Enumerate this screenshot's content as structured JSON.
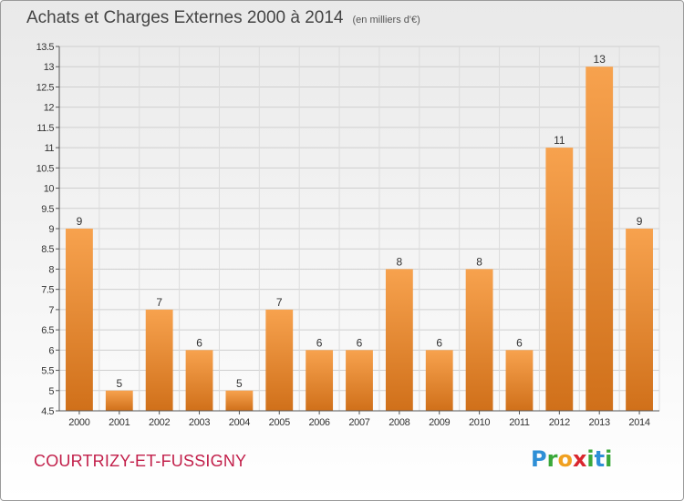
{
  "header": {
    "title": "Achats et Charges Externes 2000 à 2014",
    "unit": "(en milliers d'€)"
  },
  "footer": {
    "commune": "COURTRIZY-ET-FUSSIGNY",
    "logo": {
      "p": "P",
      "r": "r",
      "o": "o",
      "x": "x",
      "i": "i",
      "t": "t",
      "i2": "i"
    }
  },
  "colors": {
    "bar_top": "#f7a24e",
    "bar_bottom": "#d0701a",
    "commune": "#c21f4a",
    "axis": "#555555"
  },
  "chart_data": {
    "type": "bar",
    "title": "Achats et Charges Externes 2000 à 2014",
    "subtitle": "(en milliers d'€)",
    "categories": [
      "2000",
      "2001",
      "2002",
      "2003",
      "2004",
      "2005",
      "2006",
      "2007",
      "2008",
      "2009",
      "2010",
      "2011",
      "2012",
      "2013",
      "2014"
    ],
    "values": [
      9,
      5,
      7,
      6,
      5,
      7,
      6,
      6,
      8,
      6,
      8,
      6,
      11,
      13,
      9
    ],
    "data_labels": [
      "9",
      "5",
      "7",
      "6",
      "5",
      "7",
      "6",
      "6",
      "8",
      "6",
      "8",
      "6",
      "11",
      "13",
      "9"
    ],
    "xlabel": "",
    "ylabel": "",
    "ylim": [
      4.5,
      13.5
    ],
    "yticks": [
      4.5,
      5,
      5.5,
      6,
      6.5,
      7,
      7.5,
      8,
      8.5,
      9,
      9.5,
      10,
      10.5,
      11,
      11.5,
      12,
      12.5,
      13,
      13.5
    ],
    "ytick_labels": [
      "4.5",
      "5",
      "5.5",
      "6",
      "6.5",
      "7",
      "7.5",
      "8",
      "8.5",
      "9",
      "9.5",
      "10",
      "10.5",
      "11",
      "11.5",
      "12",
      "12.5",
      "13",
      "13.5"
    ],
    "grid": true,
    "legend": "none"
  }
}
